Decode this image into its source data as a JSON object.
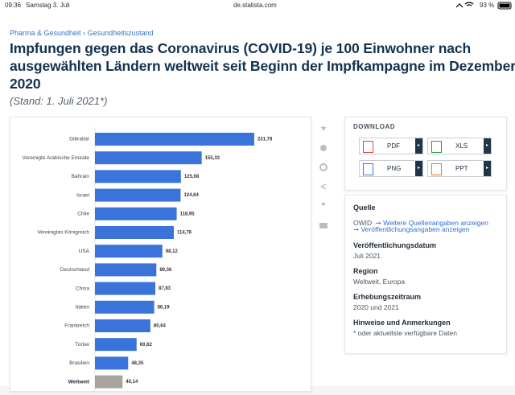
{
  "status_bar": {
    "time": "09:36",
    "date": "Samstag 3. Juli",
    "url": "de.statista.com",
    "battery": "93 %"
  },
  "breadcrumb": [
    "Pharma & Gesundheit",
    "Gesundheitszustand"
  ],
  "title_lines": [
    "Impfungen gegen das Coronavirus (COVID-19) je 100 Einwohner nach",
    "ausgewählten Ländern weltweit seit Beginn der Impfkampagne im Dezember",
    "2020"
  ],
  "subtitle": "(Stand: 1. Juli 2021*)",
  "chart_data": {
    "type": "barh",
    "categories": [
      "Gibraltar",
      "Vereinigte Arabische Emirate",
      "Bahrain",
      "Israel",
      "Chile",
      "Vereinigtes Königreich",
      "USA",
      "Deutschland",
      "China",
      "Italien",
      "Frankreich",
      "Türkei",
      "Brasilien",
      "Weltweit"
    ],
    "values": [
      231.78,
      155.33,
      125.08,
      124.64,
      118.95,
      114.76,
      98.12,
      89.36,
      87.83,
      86.19,
      80.64,
      60.62,
      48.35,
      40.14
    ],
    "value_labels": [
      "231,78",
      "155,33",
      "125,08",
      "124,64",
      "118,95",
      "114,76",
      "98,12",
      "89,36",
      "87,83",
      "86,19",
      "80,64",
      "60,62",
      "48,35",
      "40,14"
    ],
    "color": "#3a73d9",
    "bar_colors": [
      "#3a73d9",
      "#3a73d9",
      "#3a73d9",
      "#3a73d9",
      "#3a73d9",
      "#3a73d9",
      "#3a73d9",
      "#3a73d9",
      "#3a73d9",
      "#3a73d9",
      "#3a73d9",
      "#3a73d9",
      "#3a73d9",
      "#a8a39c"
    ]
  },
  "download": {
    "heading": "DOWNLOAD",
    "buttons": [
      "PDF",
      "XLS",
      "PNG",
      "PPT"
    ]
  },
  "info": {
    "source_heading": "Quelle",
    "source": "OWID",
    "source_link": "➞ Weitere Quellenangaben anzeigen",
    "publication_link": "➞ Veröffentlichungsangaben anzeigen",
    "sections": [
      {
        "heading": "Veröffentlichungsdatum",
        "text": "Juli 2021"
      },
      {
        "heading": "Region",
        "text": "Weltweit, Europa"
      },
      {
        "heading": "Erhebungszeitraum",
        "text": "2020 und 2021"
      },
      {
        "heading": "Hinweise und Anmerkungen",
        "text": "* oder aktuellste verfügbare Daten"
      }
    ]
  }
}
